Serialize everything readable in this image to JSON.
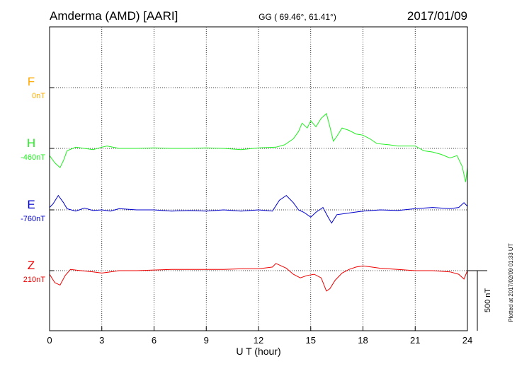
{
  "header": {
    "title": "Amderma (AMD)  [AARI]",
    "coords": "GG ( 69.46°,  61.41°)",
    "date": "2017/01/09"
  },
  "footer_note": "Plotted at 2017/02/09 01:33 UT",
  "colors": {
    "F": "#ffaa00",
    "H": "#22ee22",
    "E": "#0000cc",
    "Z": "#ee0000",
    "axis": "#000000"
  },
  "chart_data": {
    "type": "line",
    "title": "Amderma (AMD)  [AARI]",
    "xlabel": "U T (hour)",
    "xlim": [
      0,
      24
    ],
    "x_ticks": [
      0,
      3,
      6,
      9,
      12,
      15,
      18,
      21,
      24
    ],
    "scale_bar": {
      "label": "500 nT",
      "value_nT": 500
    },
    "grid": true,
    "series": [
      {
        "name": "F",
        "baseline_label": "0nT",
        "baseline_nT": 0,
        "points": []
      },
      {
        "name": "H",
        "baseline_label": "-460nT",
        "baseline_nT": -460,
        "points": [
          [
            0,
            -60
          ],
          [
            0.3,
            -120
          ],
          [
            0.6,
            -160
          ],
          [
            0.8,
            -100
          ],
          [
            1,
            -20
          ],
          [
            1.5,
            10
          ],
          [
            2,
            0
          ],
          [
            2.5,
            -10
          ],
          [
            3,
            10
          ],
          [
            3.3,
            20
          ],
          [
            4,
            0
          ],
          [
            5,
            0
          ],
          [
            6,
            5
          ],
          [
            7,
            0
          ],
          [
            8,
            0
          ],
          [
            9,
            5
          ],
          [
            10,
            0
          ],
          [
            11,
            -10
          ],
          [
            12,
            5
          ],
          [
            13,
            10
          ],
          [
            13.5,
            30
          ],
          [
            14,
            80
          ],
          [
            14.3,
            140
          ],
          [
            14.5,
            210
          ],
          [
            14.8,
            170
          ],
          [
            15,
            230
          ],
          [
            15.3,
            180
          ],
          [
            15.6,
            250
          ],
          [
            15.9,
            290
          ],
          [
            16.1,
            180
          ],
          [
            16.3,
            60
          ],
          [
            16.5,
            100
          ],
          [
            16.8,
            170
          ],
          [
            17.2,
            150
          ],
          [
            17.6,
            120
          ],
          [
            18,
            110
          ],
          [
            18.4,
            80
          ],
          [
            18.8,
            40
          ],
          [
            19.5,
            30
          ],
          [
            20,
            20
          ],
          [
            21,
            20
          ],
          [
            21.5,
            -20
          ],
          [
            22,
            -30
          ],
          [
            22.5,
            -50
          ],
          [
            23,
            -80
          ],
          [
            23.4,
            -60
          ],
          [
            23.7,
            -150
          ],
          [
            23.9,
            -280
          ],
          [
            24,
            -160
          ]
        ]
      },
      {
        "name": "E",
        "baseline_label": "-760nT",
        "baseline_nT": -760,
        "points": [
          [
            0,
            20
          ],
          [
            0.2,
            50
          ],
          [
            0.5,
            120
          ],
          [
            0.8,
            60
          ],
          [
            1,
            10
          ],
          [
            1.5,
            -10
          ],
          [
            2,
            15
          ],
          [
            2.5,
            -5
          ],
          [
            3,
            0
          ],
          [
            3.5,
            -10
          ],
          [
            4,
            10
          ],
          [
            5,
            0
          ],
          [
            6,
            0
          ],
          [
            7,
            -10
          ],
          [
            8,
            -5
          ],
          [
            9,
            -10
          ],
          [
            10,
            0
          ],
          [
            11,
            -10
          ],
          [
            12,
            0
          ],
          [
            12.8,
            -10
          ],
          [
            13.2,
            80
          ],
          [
            13.6,
            120
          ],
          [
            14,
            60
          ],
          [
            14.3,
            0
          ],
          [
            14.6,
            -20
          ],
          [
            15,
            -60
          ],
          [
            15.3,
            -20
          ],
          [
            15.7,
            20
          ],
          [
            16,
            -60
          ],
          [
            16.2,
            -110
          ],
          [
            16.5,
            -40
          ],
          [
            17,
            -30
          ],
          [
            17.5,
            -20
          ],
          [
            18,
            -10
          ],
          [
            19,
            0
          ],
          [
            20,
            -5
          ],
          [
            21,
            10
          ],
          [
            22,
            20
          ],
          [
            23,
            10
          ],
          [
            23.5,
            20
          ],
          [
            23.8,
            60
          ],
          [
            24,
            30
          ]
        ]
      },
      {
        "name": "Z",
        "baseline_label": "210nT",
        "baseline_nT": 210,
        "points": [
          [
            0,
            -30
          ],
          [
            0.3,
            -100
          ],
          [
            0.6,
            -120
          ],
          [
            0.9,
            -40
          ],
          [
            1.2,
            10
          ],
          [
            1.8,
            0
          ],
          [
            2.5,
            -10
          ],
          [
            3,
            -20
          ],
          [
            3.5,
            -10
          ],
          [
            4,
            0
          ],
          [
            5,
            0
          ],
          [
            6,
            5
          ],
          [
            7,
            10
          ],
          [
            8,
            10
          ],
          [
            9,
            10
          ],
          [
            10,
            10
          ],
          [
            11,
            15
          ],
          [
            12,
            15
          ],
          [
            12.8,
            30
          ],
          [
            13,
            60
          ],
          [
            13.3,
            40
          ],
          [
            13.6,
            20
          ],
          [
            14,
            -30
          ],
          [
            14.4,
            -60
          ],
          [
            14.8,
            -40
          ],
          [
            15.2,
            -30
          ],
          [
            15.6,
            -60
          ],
          [
            15.9,
            -170
          ],
          [
            16.1,
            -150
          ],
          [
            16.4,
            -80
          ],
          [
            16.8,
            -20
          ],
          [
            17.2,
            10
          ],
          [
            17.6,
            30
          ],
          [
            18,
            40
          ],
          [
            18.5,
            30
          ],
          [
            19,
            20
          ],
          [
            20,
            10
          ],
          [
            21,
            0
          ],
          [
            22,
            0
          ],
          [
            23,
            -10
          ],
          [
            23.5,
            -30
          ],
          [
            23.8,
            -70
          ],
          [
            24,
            0
          ]
        ]
      }
    ]
  }
}
